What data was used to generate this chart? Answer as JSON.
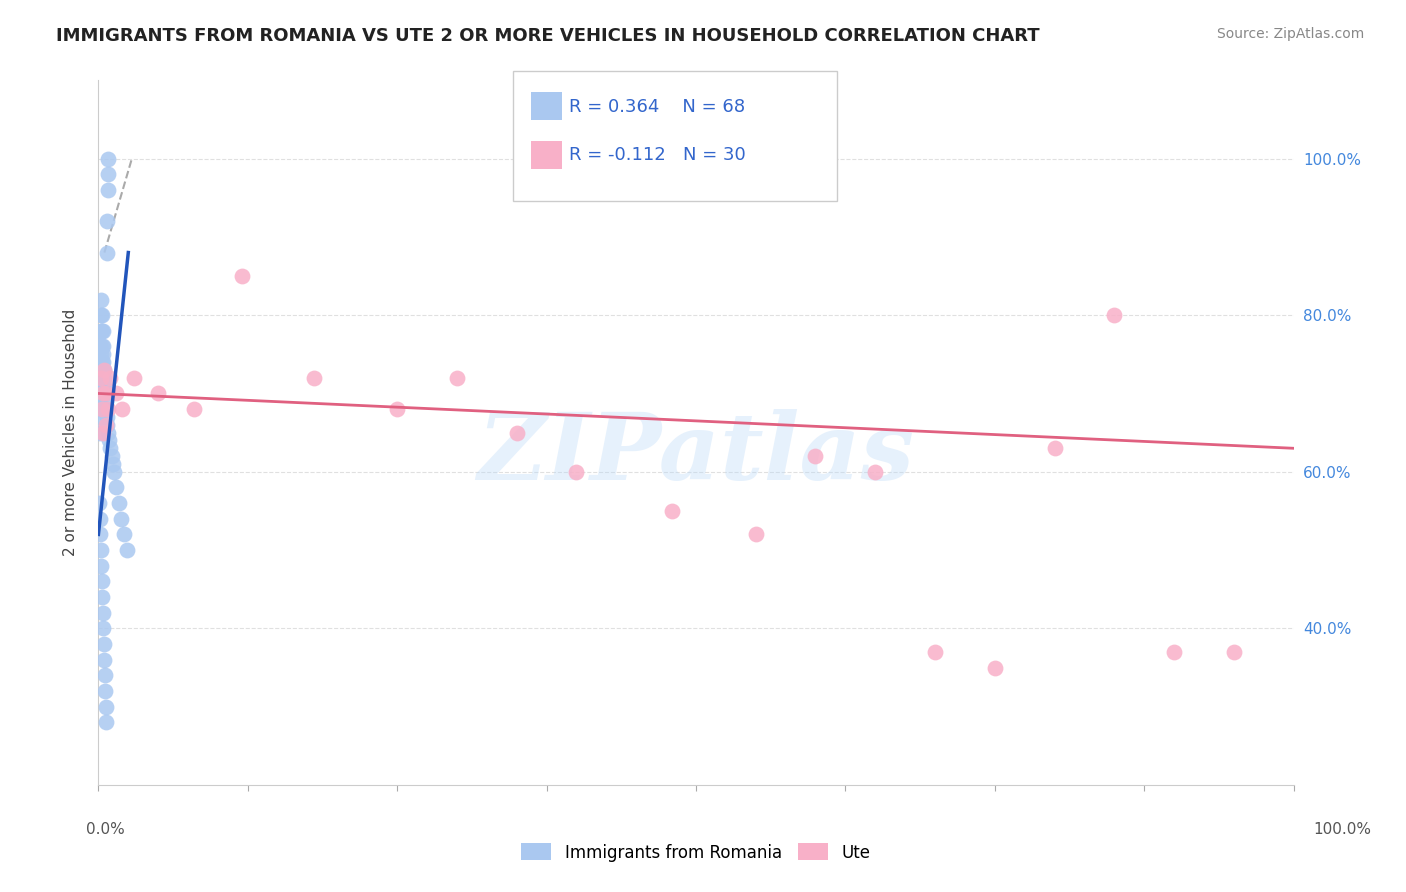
{
  "title": "IMMIGRANTS FROM ROMANIA VS UTE 2 OR MORE VEHICLES IN HOUSEHOLD CORRELATION CHART",
  "source": "Source: ZipAtlas.com",
  "ylabel": "2 or more Vehicles in Household",
  "legend1_R": "0.364",
  "legend1_N": "68",
  "legend2_R": "-0.112",
  "legend2_N": "30",
  "blue_color": "#aac8f0",
  "pink_color": "#f8b0c8",
  "blue_line_color": "#2255bb",
  "pink_line_color": "#e06080",
  "trend_dash_color": "#aaaaaa",
  "watermark": "ZIPatlas",
  "background_color": "#ffffff",
  "grid_color": "#dddddd",
  "blue_scatter_x": [
    0.05,
    0.08,
    0.1,
    0.1,
    0.12,
    0.12,
    0.15,
    0.15,
    0.18,
    0.18,
    0.2,
    0.2,
    0.22,
    0.22,
    0.25,
    0.25,
    0.28,
    0.28,
    0.3,
    0.3,
    0.32,
    0.32,
    0.35,
    0.35,
    0.38,
    0.38,
    0.4,
    0.4,
    0.42,
    0.45,
    0.48,
    0.5,
    0.55,
    0.6,
    0.65,
    0.7,
    0.75,
    0.8,
    0.9,
    1.0,
    1.1,
    1.2,
    1.3,
    1.5,
    1.7,
    1.9,
    2.1,
    2.4,
    0.08,
    0.12,
    0.16,
    0.2,
    0.24,
    0.28,
    0.32,
    0.36,
    0.4,
    0.44,
    0.48,
    0.52,
    0.56,
    0.6,
    0.64,
    0.68,
    0.72,
    0.76,
    0.8,
    0.84
  ],
  "blue_scatter_y": [
    70.0,
    68.0,
    72.0,
    65.0,
    74.0,
    67.0,
    76.0,
    69.0,
    78.0,
    71.0,
    80.0,
    73.0,
    78.0,
    72.0,
    82.0,
    75.0,
    80.0,
    74.0,
    78.0,
    72.0,
    76.0,
    70.0,
    78.0,
    73.0,
    76.0,
    71.0,
    75.0,
    70.0,
    74.0,
    73.0,
    72.0,
    71.0,
    70.0,
    69.0,
    68.0,
    67.0,
    66.0,
    65.0,
    64.0,
    63.0,
    62.0,
    61.0,
    60.0,
    58.0,
    56.0,
    54.0,
    52.0,
    50.0,
    56.0,
    54.0,
    52.0,
    50.0,
    48.0,
    46.0,
    44.0,
    42.0,
    40.0,
    38.0,
    36.0,
    34.0,
    32.0,
    30.0,
    28.0,
    88.0,
    92.0,
    96.0,
    98.0,
    100.0
  ],
  "pink_scatter_x": [
    0.2,
    0.35,
    0.5,
    0.65,
    0.8,
    1.0,
    1.5,
    2.0,
    3.0,
    5.0,
    8.0,
    12.0,
    18.0,
    25.0,
    30.0,
    35.0,
    40.0,
    48.0,
    55.0,
    60.0,
    65.0,
    70.0,
    75.0,
    80.0,
    85.0,
    90.0,
    95.0,
    0.3,
    0.4,
    0.6
  ],
  "pink_scatter_y": [
    72.0,
    70.0,
    73.0,
    70.0,
    68.0,
    72.0,
    70.0,
    68.0,
    72.0,
    70.0,
    68.0,
    85.0,
    72.0,
    68.0,
    72.0,
    65.0,
    60.0,
    55.0,
    52.0,
    62.0,
    60.0,
    37.0,
    35.0,
    63.0,
    80.0,
    37.0,
    37.0,
    68.0,
    65.0,
    66.0
  ],
  "blue_line_x": [
    0.0,
    2.5
  ],
  "blue_line_y": [
    52.0,
    88.0
  ],
  "pink_line_x": [
    0.0,
    100.0
  ],
  "pink_line_y": [
    70.0,
    63.0
  ],
  "dash_line_x": [
    0.5,
    2.8
  ],
  "dash_line_y": [
    88.0,
    100.0
  ],
  "xlim": [
    0,
    100
  ],
  "ylim": [
    20,
    110
  ],
  "yticks": [
    40,
    60,
    80,
    100
  ],
  "xticks": [
    0,
    12.5,
    25,
    37.5,
    50,
    62.5,
    75,
    87.5,
    100
  ]
}
